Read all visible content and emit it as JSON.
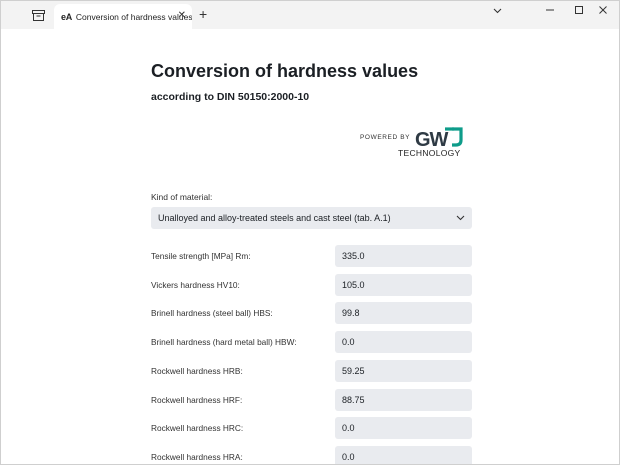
{
  "browser": {
    "tab_favicon": "eA",
    "tab_title": "Conversion of hardness values",
    "tab_close": "✕",
    "new_tab": "+",
    "controls": {
      "dropdown": "⌄",
      "minimize": "—",
      "maximize": "☐",
      "close": "✕"
    }
  },
  "page": {
    "title": "Conversion of hardness values",
    "subtitle": "according to DIN 50150:2000-10",
    "powered_by": "POWERED BY",
    "logo_text": "GWJ",
    "logo_sub": "TECHNOLOGY",
    "logo_colors": {
      "dark": "#2e3a44",
      "teal": "#0e9c8a"
    }
  },
  "material": {
    "label": "Kind of material:",
    "selected": "Unalloyed and alloy-treated steels and cast steel (tab. A.1)"
  },
  "fields": [
    {
      "label": "Tensile strength [MPa] Rm:",
      "value": "335.0"
    },
    {
      "label": "Vickers hardness HV10:",
      "value": "105.0"
    },
    {
      "label": "Brinell hardness (steel ball) HBS:",
      "value": "99.8"
    },
    {
      "label": "Brinell hardness (hard metal ball) HBW:",
      "value": "0.0"
    },
    {
      "label": "Rockwell hardness HRB:",
      "value": "59.25"
    },
    {
      "label": "Rockwell hardness HRF:",
      "value": "88.75"
    },
    {
      "label": "Rockwell hardness HRC:",
      "value": "0.0"
    },
    {
      "label": "Rockwell hardness HRA:",
      "value": "0.0"
    }
  ]
}
